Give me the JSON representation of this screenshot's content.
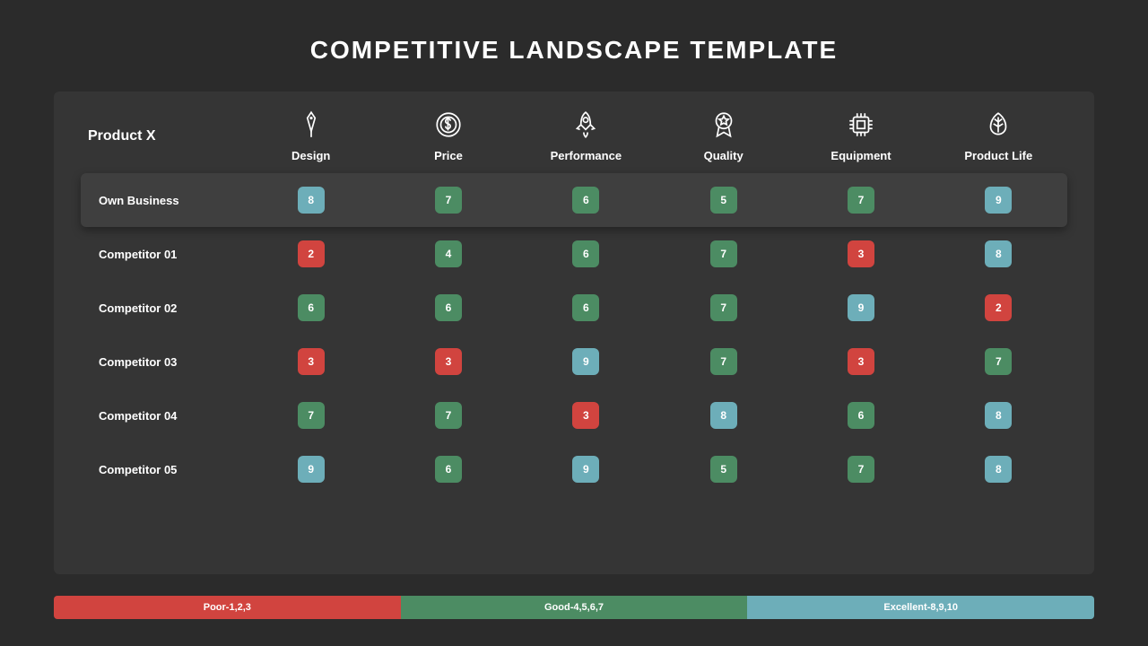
{
  "colors": {
    "page_bg": "#2b2b2b",
    "panel_bg": "#353535",
    "row_highlight_bg": "#3f3f3f",
    "text": "#ffffff",
    "poor": "#d1443f",
    "good": "#4c8c63",
    "excellent": "#6daeb9"
  },
  "title": "COMPETITIVE LANDSCAPE TEMPLATE",
  "corner_label": "Product X",
  "columns": [
    {
      "label": "Design",
      "icon": "pen"
    },
    {
      "label": "Price",
      "icon": "dollar"
    },
    {
      "label": "Performance",
      "icon": "rocket"
    },
    {
      "label": "Quality",
      "icon": "ribbon"
    },
    {
      "label": "Equipment",
      "icon": "chip"
    },
    {
      "label": "Product Life",
      "icon": "leaf"
    }
  ],
  "rows": [
    {
      "label": "Own Business",
      "highlight": true,
      "values": [
        8,
        7,
        6,
        5,
        7,
        9
      ]
    },
    {
      "label": "Competitor 01",
      "highlight": false,
      "values": [
        2,
        4,
        6,
        7,
        3,
        8
      ]
    },
    {
      "label": "Competitor 02",
      "highlight": false,
      "values": [
        6,
        6,
        6,
        7,
        9,
        2
      ]
    },
    {
      "label": "Competitor 03",
      "highlight": false,
      "values": [
        3,
        3,
        9,
        7,
        3,
        7
      ]
    },
    {
      "label": "Competitor 04",
      "highlight": false,
      "values": [
        7,
        7,
        3,
        8,
        6,
        8
      ]
    },
    {
      "label": "Competitor 05",
      "highlight": false,
      "values": [
        9,
        6,
        9,
        5,
        7,
        8
      ]
    }
  ],
  "legend": [
    {
      "label": "Poor-1,2,3",
      "range": [
        1,
        3
      ],
      "color_key": "poor"
    },
    {
      "label": "Good-4,5,6,7",
      "range": [
        4,
        7
      ],
      "color_key": "good"
    },
    {
      "label": "Excellent-8,9,10",
      "range": [
        8,
        10
      ],
      "color_key": "excellent"
    }
  ],
  "typography": {
    "title_fontsize": 28,
    "label_fontsize": 13,
    "chip_fontsize": 12
  }
}
